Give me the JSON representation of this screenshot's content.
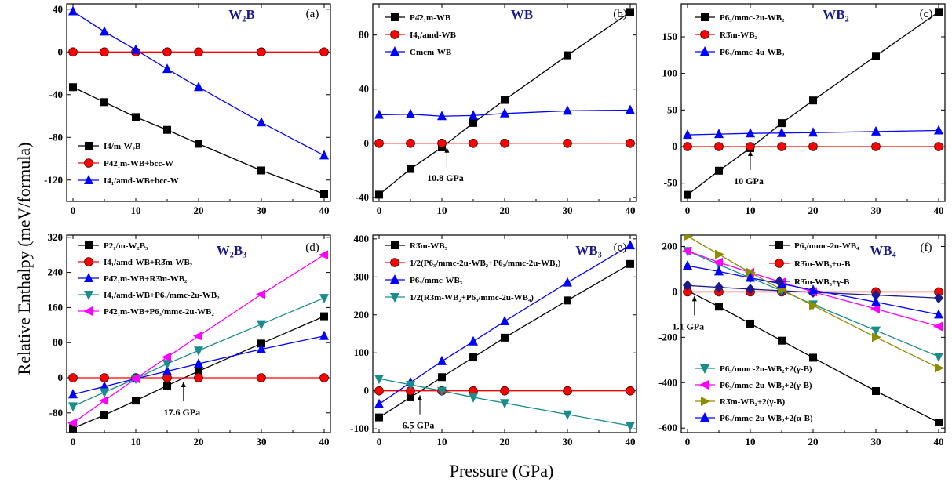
{
  "figure": {
    "ylabel": "Relative Enthalpy (meV/formula)",
    "xlabel": "Pressure (GPa)"
  },
  "chart_data": [
    {
      "type": "line",
      "panel": "(a)",
      "compound": "W₂B",
      "xlim": [
        -1,
        41
      ],
      "ylim": [
        -140,
        45
      ],
      "xticks": [
        0,
        10,
        20,
        30,
        40
      ],
      "yticks": [
        -120,
        -80,
        -40,
        0,
        40
      ],
      "legend_position": "bottom-left",
      "series": [
        {
          "name": "I4/m-W₂B",
          "color": "#000000",
          "marker": "square",
          "x": [
            0,
            5,
            10,
            15,
            20,
            30,
            40
          ],
          "y": [
            -33,
            -47,
            -61,
            -73,
            -86,
            -111,
            -133
          ]
        },
        {
          "name": "P4̄2₁m-WB+bcc-W",
          "color": "#ff0000",
          "marker": "circle",
          "x": [
            0,
            5,
            10,
            15,
            20,
            30,
            40
          ],
          "y": [
            0,
            0,
            0,
            0,
            0,
            0,
            0
          ]
        },
        {
          "name": "I4₁/amd-WB+bcc-W",
          "color": "#0000ff",
          "marker": "triangle",
          "x": [
            0,
            5,
            10,
            15,
            20,
            30,
            40
          ],
          "y": [
            38,
            19,
            2,
            -16,
            -33,
            -66,
            -97
          ]
        }
      ],
      "annotations": []
    },
    {
      "type": "line",
      "panel": "(b)",
      "compound": "WB",
      "xlim": [
        -1,
        41
      ],
      "ylim": [
        -43,
        103
      ],
      "xticks": [
        0,
        10,
        20,
        30,
        40
      ],
      "yticks": [
        -40,
        0,
        40,
        80
      ],
      "legend_position": "top-left",
      "series": [
        {
          "name": "P4̄2₁m-WB",
          "color": "#000000",
          "marker": "square",
          "x": [
            0,
            5,
            10,
            15,
            20,
            30,
            40
          ],
          "y": [
            -38,
            -19,
            -3,
            15,
            32,
            65,
            97
          ]
        },
        {
          "name": "I4₁/amd-WB",
          "color": "#ff0000",
          "marker": "circle",
          "x": [
            0,
            5,
            10,
            15,
            20,
            30,
            40
          ],
          "y": [
            0,
            0,
            0,
            0,
            0,
            0,
            0
          ]
        },
        {
          "name": "Cmcm-WB",
          "color": "#0000ff",
          "marker": "triangle",
          "x": [
            0,
            5,
            10,
            15,
            20,
            30,
            40
          ],
          "y": [
            21,
            21.5,
            20,
            20.5,
            22,
            24,
            24.5
          ]
        }
      ],
      "annotations": [
        {
          "text": "10.8 GPa",
          "x": 10.8,
          "y": 0
        }
      ]
    },
    {
      "type": "line",
      "panel": "(c)",
      "compound": "WB₂",
      "xlim": [
        -1,
        41
      ],
      "ylim": [
        -75,
        195
      ],
      "xticks": [
        0,
        10,
        20,
        30,
        40
      ],
      "yticks": [
        -50,
        0,
        50,
        100,
        150
      ],
      "legend_position": "top-left",
      "series": [
        {
          "name": "P6₃/mmc-2u-WB₂",
          "color": "#000000",
          "marker": "square",
          "x": [
            0,
            5,
            10,
            15,
            20,
            30,
            40
          ],
          "y": [
            -66,
            -33,
            -2,
            32,
            63,
            124,
            184
          ]
        },
        {
          "name": "R3̄m-WB₂",
          "color": "#ff0000",
          "marker": "circle",
          "x": [
            0,
            5,
            10,
            15,
            20,
            30,
            40
          ],
          "y": [
            0,
            0,
            0,
            0,
            0,
            0,
            0
          ]
        },
        {
          "name": "P6₃/mmc-4u-WB₂",
          "color": "#0000ff",
          "marker": "triangle",
          "x": [
            0,
            5,
            10,
            15,
            20,
            30,
            40
          ],
          "y": [
            16,
            17,
            18,
            18.5,
            19,
            20.5,
            22
          ]
        }
      ],
      "annotations": [
        {
          "text": "10 GPa",
          "x": 10,
          "y": 0
        }
      ]
    },
    {
      "type": "line",
      "panel": "(d)",
      "compound": "W₂B₃",
      "xlim": [
        -1,
        41
      ],
      "ylim": [
        -125,
        325
      ],
      "xticks": [
        0,
        10,
        20,
        30,
        40
      ],
      "yticks": [
        -80,
        0,
        80,
        160,
        240,
        320
      ],
      "legend_position": "top-left",
      "series": [
        {
          "name": "P2₁/m-W₂B₃",
          "color": "#000000",
          "marker": "square",
          "x": [
            0,
            5,
            10,
            15,
            20,
            30,
            40
          ],
          "y": [
            -115,
            -85,
            -52,
            -18,
            15,
            78,
            140
          ]
        },
        {
          "name": "I4₁/amd-WB+R3̄m-WB₂",
          "color": "#ff0000",
          "marker": "circle",
          "x": [
            0,
            5,
            10,
            15,
            20,
            30,
            40
          ],
          "y": [
            0,
            0,
            0,
            0,
            0,
            0,
            0
          ]
        },
        {
          "name": "P4̄2₁m-WB+R3̄m-WB₂",
          "color": "#0000ff",
          "marker": "triangle",
          "x": [
            0,
            5,
            10,
            15,
            20,
            30,
            40
          ],
          "y": [
            -38,
            -20,
            -2,
            15,
            32,
            65,
            95
          ]
        },
        {
          "name": "I4₁/amd-WB+P6₃/mmc-2u-WB₂",
          "color": "#1a8c8c",
          "marker": "triangle-down",
          "x": [
            0,
            5,
            10,
            15,
            20,
            30,
            40
          ],
          "y": [
            -65,
            -33,
            -2,
            32,
            62,
            122,
            182
          ]
        },
        {
          "name": "P4̄2₁m-WB+P6₃/mmc-2u-WB₂",
          "color": "#ff00ff",
          "marker": "triangle-left",
          "x": [
            0,
            5,
            10,
            15,
            20,
            30,
            40
          ],
          "y": [
            -103,
            -52,
            -2,
            47,
            95,
            190,
            280
          ]
        }
      ],
      "annotations": [
        {
          "text": "17.6 GPa",
          "x": 17.6,
          "y": 0
        }
      ]
    },
    {
      "type": "line",
      "panel": "(e)",
      "compound": "WB₃",
      "xlim": [
        -1,
        41
      ],
      "ylim": [
        -110,
        410
      ],
      "xticks": [
        0,
        10,
        20,
        30,
        40
      ],
      "yticks": [
        -100,
        0,
        100,
        200,
        300,
        400
      ],
      "legend_position": "top-left",
      "series": [
        {
          "name": "R3̄m-WB₃",
          "color": "#000000",
          "marker": "square",
          "x": [
            0,
            5,
            10,
            15,
            20,
            30,
            40
          ],
          "y": [
            -70,
            -17,
            36,
            88,
            140,
            238,
            334
          ]
        },
        {
          "name": "1/2(P6₃/mmc-2u-WB₂+P6₃/mmc-2u-WB₄)",
          "color": "#ff0000",
          "marker": "circle",
          "x": [
            0,
            5,
            10,
            15,
            20,
            30,
            40
          ],
          "y": [
            0,
            0,
            0,
            0,
            0,
            0,
            0
          ]
        },
        {
          "name": "P6₃/mmc-WB₃",
          "color": "#0000ff",
          "marker": "triangle",
          "x": [
            0,
            5,
            10,
            15,
            20,
            30,
            40
          ],
          "y": [
            -35,
            22,
            78,
            130,
            183,
            285,
            383
          ]
        },
        {
          "name": "1/2(R3̄m-WB₂+P6₃/mmc-2u-WB₄)",
          "color": "#1a8c8c",
          "marker": "triangle-down",
          "x": [
            0,
            5,
            10,
            15,
            20,
            30,
            40
          ],
          "y": [
            32,
            16,
            0,
            -17,
            -32,
            -62,
            -92
          ]
        }
      ],
      "annotations": [
        {
          "text": "6.5 GPa",
          "x": 6.5,
          "y": 0
        }
      ]
    },
    {
      "type": "line",
      "panel": "(f)",
      "compound": "WB₄",
      "xlim": [
        -1,
        41
      ],
      "ylim": [
        -620,
        250
      ],
      "xticks": [
        0,
        10,
        20,
        30,
        40
      ],
      "yticks": [
        -600,
        -400,
        -200,
        0,
        200
      ],
      "legend_position": "top-right; bottom-left",
      "series": [
        {
          "name": "P6₃/mmc-2u-WB₄",
          "color": "#000000",
          "marker": "square",
          "x": [
            0,
            5,
            10,
            15,
            20,
            30,
            40
          ],
          "y": [
            5,
            -65,
            -140,
            -215,
            -290,
            -437,
            -575
          ]
        },
        {
          "name": "R3̄m-WB₃+α-B",
          "color": "#ff0000",
          "marker": "circle",
          "x": [
            0,
            5,
            10,
            15,
            20,
            30,
            40
          ],
          "y": [
            0,
            0,
            0,
            0,
            0,
            0,
            0
          ]
        },
        {
          "name": "R3̄m-WB₃+γ-B",
          "color": "#1a1a8c",
          "marker": "diamond",
          "x": [
            0,
            5,
            10,
            15,
            20,
            30,
            40
          ],
          "y": [
            28,
            20,
            12,
            5,
            -2,
            -14,
            -27
          ]
        },
        {
          "name": "P6₃/mmc-2u-WB₂+2(γ-B)",
          "color": "#1a8c8c",
          "marker": "triangle-down",
          "x": [
            0,
            5,
            10,
            15,
            20,
            30,
            40
          ],
          "y": [
            180,
            120,
            62,
            5,
            -55,
            -170,
            -285
          ]
        },
        {
          "name": "P6₃/mmc-2u-WB₂+2(γ-B)",
          "color": "#ff00ff",
          "marker": "triangle-left",
          "x": [
            0,
            5,
            10,
            15,
            20,
            30,
            40
          ],
          "y": [
            180,
            130,
            85,
            42,
            0,
            -75,
            -152
          ]
        },
        {
          "name": "R3̄m-WB₂+2(γ-B)",
          "color": "#8c8c00",
          "marker": "triangle-right",
          "x": [
            0,
            5,
            10,
            15,
            20,
            30,
            40
          ],
          "y": [
            245,
            165,
            85,
            10,
            -60,
            -200,
            -335
          ]
        },
        {
          "name": "P6₃/mmc-2u-WB₂+2(α-B)",
          "color": "#0000ff",
          "marker": "triangle",
          "x": [
            0,
            5,
            10,
            15,
            20,
            30,
            40
          ],
          "y": [
            115,
            90,
            62,
            35,
            8,
            -45,
            -100
          ]
        }
      ],
      "annotations": [
        {
          "text": "1.1 GPa",
          "x": 1.1,
          "y": 0
        }
      ]
    }
  ]
}
